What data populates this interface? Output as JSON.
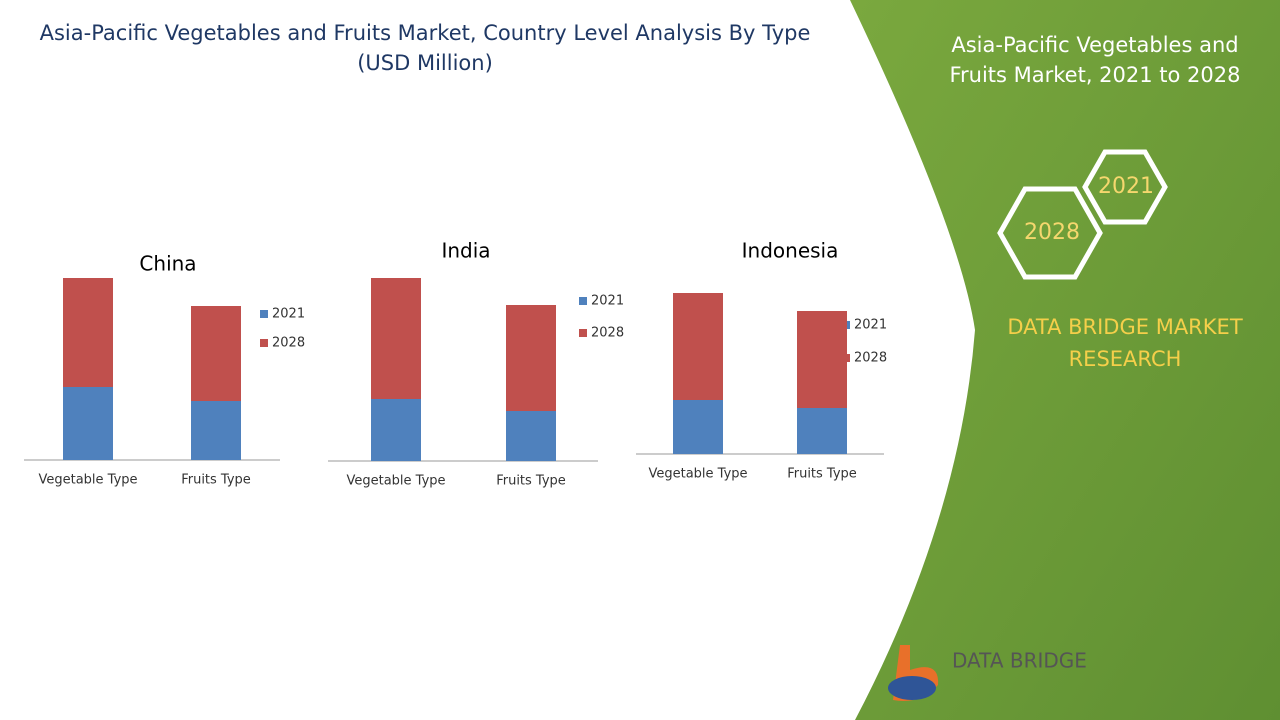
{
  "header": {
    "title": "Asia-Pacific Vegetables and Fruits Market, Country Level Analysis By Type (USD Million)"
  },
  "side_panel": {
    "title": "Asia-Pacific Vegetables and Fruits Market, 2021 to 2028",
    "hex_top": "2021",
    "hex_bottom": "2028",
    "brand": "DATA BRIDGE MARKET RESEARCH",
    "logo": "DATA BRIDGE"
  },
  "chart_data": [
    {
      "type": "bar",
      "stacked": true,
      "title": "China",
      "categories": [
        "Vegetable Type",
        "Fruits Type"
      ],
      "ylim": [
        0,
        200
      ],
      "series": [
        {
          "name": "2021",
          "color": "#4f81bd",
          "values": [
            73,
            59
          ]
        },
        {
          "name": "2028",
          "color": "#c0504d",
          "values": [
            109,
            95
          ]
        }
      ]
    },
    {
      "type": "bar",
      "stacked": true,
      "title": "India",
      "categories": [
        "Vegetable Type",
        "Fruits Type"
      ],
      "ylim": [
        0,
        200
      ],
      "series": [
        {
          "name": "2021",
          "color": "#4f81bd",
          "values": [
            62,
            50
          ]
        },
        {
          "name": "2028",
          "color": "#c0504d",
          "values": [
            121,
            106
          ]
        }
      ]
    },
    {
      "type": "bar",
      "stacked": true,
      "title": "Indonesia",
      "categories": [
        "Vegetable Type",
        "Fruits Type"
      ],
      "ylim": [
        0,
        200
      ],
      "series": [
        {
          "name": "2021",
          "color": "#4f81bd",
          "values": [
            54,
            46
          ]
        },
        {
          "name": "2028",
          "color": "#c0504d",
          "values": [
            107,
            97
          ]
        }
      ]
    }
  ]
}
